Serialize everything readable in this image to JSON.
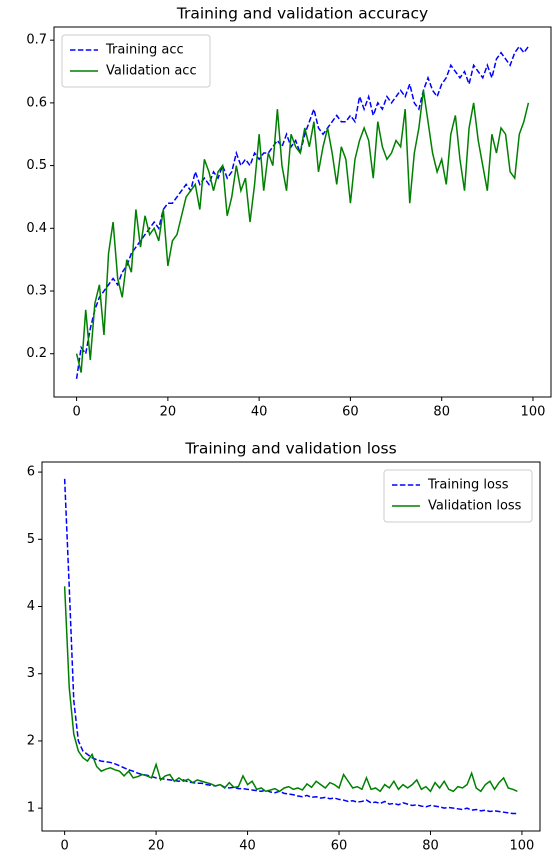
{
  "chart_data": [
    {
      "type": "line",
      "title": "Training and validation accuracy",
      "x": [
        0,
        1,
        2,
        3,
        4,
        5,
        6,
        7,
        8,
        9,
        10,
        11,
        12,
        13,
        14,
        15,
        16,
        17,
        18,
        19,
        20,
        21,
        22,
        23,
        24,
        25,
        26,
        27,
        28,
        29,
        30,
        31,
        32,
        33,
        34,
        35,
        36,
        37,
        38,
        39,
        40,
        41,
        42,
        43,
        44,
        45,
        46,
        47,
        48,
        49,
        50,
        51,
        52,
        53,
        54,
        55,
        56,
        57,
        58,
        59,
        60,
        61,
        62,
        63,
        64,
        65,
        66,
        67,
        68,
        69,
        70,
        71,
        72,
        73,
        74,
        75,
        76,
        77,
        78,
        79,
        80,
        81,
        82,
        83,
        84,
        85,
        86,
        87,
        88,
        89,
        90,
        91,
        92,
        93,
        94,
        95,
        96,
        97,
        98,
        99
      ],
      "series": [
        {
          "name": "Training acc",
          "color": "#0000ff",
          "linestyle": "dashed",
          "values": [
            0.16,
            0.21,
            0.2,
            0.24,
            0.27,
            0.29,
            0.3,
            0.31,
            0.32,
            0.31,
            0.33,
            0.34,
            0.36,
            0.37,
            0.38,
            0.39,
            0.4,
            0.41,
            0.4,
            0.43,
            0.44,
            0.44,
            0.45,
            0.46,
            0.47,
            0.46,
            0.49,
            0.47,
            0.48,
            0.47,
            0.49,
            0.48,
            0.5,
            0.48,
            0.49,
            0.52,
            0.5,
            0.51,
            0.5,
            0.52,
            0.51,
            0.52,
            0.52,
            0.53,
            0.54,
            0.53,
            0.55,
            0.53,
            0.54,
            0.52,
            0.55,
            0.57,
            0.59,
            0.56,
            0.55,
            0.56,
            0.57,
            0.58,
            0.57,
            0.57,
            0.58,
            0.57,
            0.61,
            0.59,
            0.61,
            0.58,
            0.6,
            0.59,
            0.61,
            0.6,
            0.61,
            0.62,
            0.61,
            0.63,
            0.6,
            0.59,
            0.62,
            0.64,
            0.62,
            0.61,
            0.63,
            0.64,
            0.66,
            0.65,
            0.64,
            0.65,
            0.63,
            0.66,
            0.65,
            0.64,
            0.66,
            0.64,
            0.67,
            0.68,
            0.67,
            0.66,
            0.68,
            0.69,
            0.68,
            0.69
          ]
        },
        {
          "name": "Validation acc",
          "color": "#008000",
          "linestyle": "solid",
          "values": [
            0.2,
            0.17,
            0.27,
            0.19,
            0.28,
            0.31,
            0.23,
            0.36,
            0.41,
            0.32,
            0.29,
            0.35,
            0.33,
            0.43,
            0.37,
            0.42,
            0.39,
            0.4,
            0.38,
            0.43,
            0.34,
            0.38,
            0.39,
            0.42,
            0.45,
            0.46,
            0.47,
            0.43,
            0.51,
            0.49,
            0.46,
            0.49,
            0.5,
            0.42,
            0.45,
            0.5,
            0.46,
            0.48,
            0.41,
            0.47,
            0.55,
            0.46,
            0.52,
            0.5,
            0.59,
            0.5,
            0.46,
            0.55,
            0.53,
            0.52,
            0.56,
            0.53,
            0.57,
            0.49,
            0.53,
            0.56,
            0.52,
            0.47,
            0.53,
            0.51,
            0.44,
            0.51,
            0.54,
            0.56,
            0.54,
            0.48,
            0.57,
            0.53,
            0.51,
            0.52,
            0.54,
            0.53,
            0.59,
            0.44,
            0.52,
            0.56,
            0.62,
            0.57,
            0.52,
            0.49,
            0.51,
            0.47,
            0.55,
            0.58,
            0.51,
            0.46,
            0.56,
            0.6,
            0.54,
            0.5,
            0.46,
            0.55,
            0.52,
            0.56,
            0.55,
            0.49,
            0.48,
            0.55,
            0.57,
            0.6
          ]
        }
      ],
      "xlim": [
        -4.95,
        103.95
      ],
      "xticks": [
        0,
        20,
        40,
        60,
        80,
        100
      ],
      "ylim": [
        0.131,
        0.721
      ],
      "yticks": [
        0.2,
        0.3,
        0.4,
        0.5,
        0.6,
        0.7
      ],
      "grid": false,
      "legend": "upper left"
    },
    {
      "type": "line",
      "title": "Training and validation loss",
      "x": [
        0,
        1,
        2,
        3,
        4,
        5,
        6,
        7,
        8,
        9,
        10,
        11,
        12,
        13,
        14,
        15,
        16,
        17,
        18,
        19,
        20,
        21,
        22,
        23,
        24,
        25,
        26,
        27,
        28,
        29,
        30,
        31,
        32,
        33,
        34,
        35,
        36,
        37,
        38,
        39,
        40,
        41,
        42,
        43,
        44,
        45,
        46,
        47,
        48,
        49,
        50,
        51,
        52,
        53,
        54,
        55,
        56,
        57,
        58,
        59,
        60,
        61,
        62,
        63,
        64,
        65,
        66,
        67,
        68,
        69,
        70,
        71,
        72,
        73,
        74,
        75,
        76,
        77,
        78,
        79,
        80,
        81,
        82,
        83,
        84,
        85,
        86,
        87,
        88,
        89,
        90,
        91,
        92,
        93,
        94,
        95,
        96,
        97,
        98,
        99
      ],
      "series": [
        {
          "name": "Training loss",
          "color": "#0000ff",
          "linestyle": "dashed",
          "values": [
            5.9,
            4.3,
            2.6,
            2.0,
            1.85,
            1.8,
            1.75,
            1.72,
            1.7,
            1.69,
            1.68,
            1.66,
            1.63,
            1.6,
            1.57,
            1.55,
            1.52,
            1.5,
            1.49,
            1.47,
            1.45,
            1.44,
            1.43,
            1.42,
            1.41,
            1.4,
            1.42,
            1.39,
            1.38,
            1.37,
            1.37,
            1.35,
            1.34,
            1.33,
            1.35,
            1.31,
            1.3,
            1.31,
            1.29,
            1.29,
            1.28,
            1.27,
            1.26,
            1.25,
            1.27,
            1.24,
            1.23,
            1.25,
            1.22,
            1.21,
            1.2,
            1.18,
            1.17,
            1.19,
            1.16,
            1.17,
            1.15,
            1.16,
            1.14,
            1.15,
            1.13,
            1.12,
            1.1,
            1.11,
            1.09,
            1.1,
            1.12,
            1.08,
            1.09,
            1.07,
            1.1,
            1.06,
            1.07,
            1.05,
            1.08,
            1.06,
            1.04,
            1.05,
            1.03,
            1.02,
            1.04,
            1.03,
            1.02,
            1.0,
            1.01,
            1.0,
            0.99,
            0.98,
            1.0,
            0.97,
            0.98,
            0.96,
            0.97,
            0.95,
            0.96,
            0.95,
            0.94,
            0.93,
            0.92,
            0.92
          ]
        },
        {
          "name": "Validation loss",
          "color": "#008000",
          "linestyle": "solid",
          "values": [
            4.3,
            2.8,
            2.1,
            1.85,
            1.75,
            1.7,
            1.8,
            1.62,
            1.55,
            1.58,
            1.6,
            1.57,
            1.55,
            1.48,
            1.55,
            1.45,
            1.47,
            1.5,
            1.48,
            1.45,
            1.65,
            1.42,
            1.48,
            1.5,
            1.4,
            1.45,
            1.4,
            1.43,
            1.38,
            1.42,
            1.4,
            1.38,
            1.36,
            1.33,
            1.35,
            1.3,
            1.38,
            1.31,
            1.32,
            1.48,
            1.35,
            1.4,
            1.28,
            1.3,
            1.25,
            1.27,
            1.29,
            1.25,
            1.3,
            1.32,
            1.28,
            1.3,
            1.27,
            1.36,
            1.31,
            1.4,
            1.35,
            1.3,
            1.38,
            1.35,
            1.3,
            1.5,
            1.4,
            1.3,
            1.32,
            1.28,
            1.45,
            1.28,
            1.3,
            1.25,
            1.35,
            1.3,
            1.4,
            1.28,
            1.35,
            1.3,
            1.35,
            1.42,
            1.28,
            1.32,
            1.25,
            1.38,
            1.3,
            1.4,
            1.28,
            1.25,
            1.32,
            1.3,
            1.35,
            1.52,
            1.3,
            1.25,
            1.35,
            1.4,
            1.28,
            1.38,
            1.45,
            1.3,
            1.28,
            1.25
          ]
        }
      ],
      "xlim": [
        -4.95,
        103.95
      ],
      "xticks": [
        0,
        20,
        40,
        60,
        80,
        100
      ],
      "ylim": [
        0.66,
        6.15
      ],
      "yticks": [
        1,
        2,
        3,
        4,
        5,
        6
      ],
      "grid": false,
      "legend": "upper right"
    }
  ]
}
